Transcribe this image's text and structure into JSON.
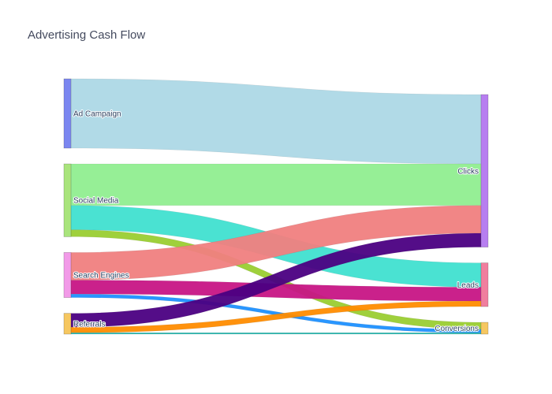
{
  "chart_data": {
    "type": "sankey",
    "title": "Advertising Cash Flow",
    "nodes": [
      {
        "id": "ad",
        "label": "Ad Campaign",
        "column": 0,
        "color": "#7b86f0"
      },
      {
        "id": "social",
        "label": "Social Media",
        "column": 0,
        "color": "#a9e47c"
      },
      {
        "id": "search",
        "label": "Search Engines",
        "column": 0,
        "color": "#f29ae8"
      },
      {
        "id": "referrals",
        "label": "Referrals",
        "column": 0,
        "color": "#f6c760"
      },
      {
        "id": "clicks",
        "label": "Clicks",
        "column": 1,
        "color": "#b77ef0"
      },
      {
        "id": "leads",
        "label": "Leads",
        "column": 1,
        "color": "#f07e9e"
      },
      {
        "id": "conversions",
        "label": "Conversions",
        "column": 1,
        "color": "#f6c760"
      }
    ],
    "links": [
      {
        "source": "ad",
        "target": "clicks",
        "value": 10,
        "color": "#add8e6"
      },
      {
        "source": "social",
        "target": "clicks",
        "value": 6,
        "color": "#90ee90"
      },
      {
        "source": "social",
        "target": "leads",
        "value": 3.5,
        "color": "#40e0d0"
      },
      {
        "source": "social",
        "target": "conversions",
        "value": 1,
        "color": "#9acd32"
      },
      {
        "source": "search",
        "target": "clicks",
        "value": 4,
        "color": "#f08080"
      },
      {
        "source": "search",
        "target": "leads",
        "value": 2,
        "color": "#c71585"
      },
      {
        "source": "search",
        "target": "conversions",
        "value": 0.5,
        "color": "#1e90ff"
      },
      {
        "source": "referrals",
        "target": "clicks",
        "value": 2,
        "color": "#4b0082"
      },
      {
        "source": "referrals",
        "target": "leads",
        "value": 0.8,
        "color": "#ff8c00"
      },
      {
        "source": "referrals",
        "target": "conversions",
        "value": 0.2,
        "color": "#20b2aa"
      }
    ]
  }
}
